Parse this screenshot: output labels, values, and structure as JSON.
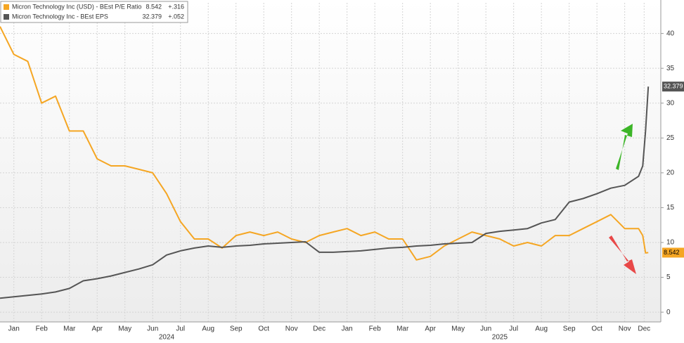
{
  "chart_data": {
    "type": "line",
    "x": [
      0,
      0.5,
      1,
      1.5,
      2,
      2.5,
      3,
      3.5,
      4,
      4.5,
      5,
      5.5,
      6,
      6.5,
      7,
      7.5,
      8,
      8.5,
      9,
      9.5,
      10,
      10.5,
      11,
      11.5,
      12,
      12.5,
      13,
      13.5,
      14,
      14.5,
      15,
      15.5,
      16,
      16.5,
      17,
      17.5,
      18,
      18.5,
      19,
      19.5,
      20,
      20.5,
      21,
      21.5,
      22,
      22.5,
      23,
      23.15,
      23.25,
      23.35
    ],
    "series": [
      {
        "name": "Micron Technology Inc (USD) - BEst P/E Ratio",
        "change": "+.316",
        "color": "#f5a623",
        "values": [
          41,
          37,
          36,
          30,
          31,
          26,
          26,
          22,
          21,
          21,
          20.5,
          20,
          17,
          13,
          10.5,
          10.5,
          9.2,
          11,
          11.5,
          11,
          11.5,
          10.5,
          10,
          11,
          11.5,
          12,
          11,
          11.5,
          10.5,
          10.5,
          7.5,
          8,
          9.5,
          10.5,
          11.5,
          11,
          10.5,
          9.5,
          10,
          9.5,
          11,
          11,
          12,
          13,
          14,
          12,
          12,
          11,
          8.5,
          8.542
        ]
      },
      {
        "name": "Micron Technology Inc - BEst EPS",
        "change": "+.052",
        "color": "#555555",
        "values": [
          2,
          2.2,
          2.4,
          2.6,
          2.9,
          3.4,
          4.5,
          4.8,
          5.2,
          5.7,
          6.2,
          6.8,
          8.2,
          8.8,
          9.2,
          9.5,
          9.3,
          9.5,
          9.6,
          9.8,
          9.9,
          10.0,
          10.1,
          8.6,
          8.6,
          8.7,
          8.8,
          9.0,
          9.2,
          9.3,
          9.5,
          9.6,
          9.8,
          9.9,
          10,
          11.3,
          11.6,
          11.8,
          12,
          12.8,
          13.3,
          15.8,
          16.3,
          17,
          17.8,
          18.2,
          19.5,
          21,
          26,
          32.379
        ]
      }
    ],
    "xlim": [
      0,
      23.8
    ],
    "xticks": [
      {
        "value": 0.5,
        "label": "Jan"
      },
      {
        "value": 1.5,
        "label": "Feb"
      },
      {
        "value": 2.5,
        "label": "Mar"
      },
      {
        "value": 3.5,
        "label": "Apr"
      },
      {
        "value": 4.5,
        "label": "May"
      },
      {
        "value": 5.5,
        "label": "Jun"
      },
      {
        "value": 6.5,
        "label": "Jul"
      },
      {
        "value": 7.5,
        "label": "Aug"
      },
      {
        "value": 8.5,
        "label": "Sep"
      },
      {
        "value": 9.5,
        "label": "Oct"
      },
      {
        "value": 10.5,
        "label": "Nov"
      },
      {
        "value": 11.5,
        "label": "Dec"
      },
      {
        "value": 12.5,
        "label": "Jan"
      },
      {
        "value": 13.5,
        "label": "Feb"
      },
      {
        "value": 14.5,
        "label": "Mar"
      },
      {
        "value": 15.5,
        "label": "Apr"
      },
      {
        "value": 16.5,
        "label": "May"
      },
      {
        "value": 17.5,
        "label": "Jun"
      },
      {
        "value": 18.5,
        "label": "Jul"
      },
      {
        "value": 19.5,
        "label": "Aug"
      },
      {
        "value": 20.5,
        "label": "Sep"
      },
      {
        "value": 21.5,
        "label": "Oct"
      },
      {
        "value": 22.5,
        "label": "Nov"
      },
      {
        "value": 23.2,
        "label": "Dec"
      }
    ],
    "years": [
      {
        "value": 6,
        "label": "2024"
      },
      {
        "value": 18,
        "label": "2025"
      }
    ],
    "ylim": [
      -1.4,
      44.4
    ],
    "yticks": [
      0,
      5,
      10,
      15,
      20,
      25,
      30,
      35,
      40
    ],
    "grid": true
  }
}
